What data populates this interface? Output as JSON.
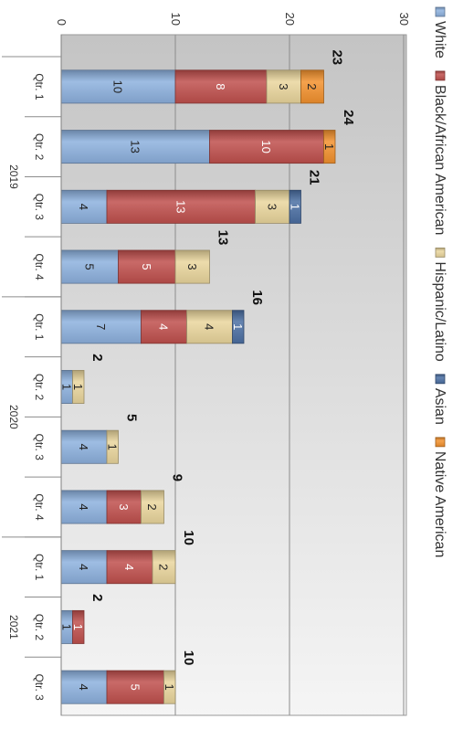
{
  "chart_data": {
    "type": "bar",
    "stacked": true,
    "orientation": "rotated-90-clockwise",
    "ylim": [
      0,
      30
    ],
    "y_ticks": [
      "0",
      "10",
      "20",
      "30"
    ],
    "grid": true,
    "legend_position": "top",
    "groups": [
      {
        "label": "2019",
        "categories": [
          "Qtr. 1",
          "Qtr. 2",
          "Qtr. 3",
          "Qtr. 4"
        ]
      },
      {
        "label": "2020",
        "categories": [
          "Qtr. 1",
          "Qtr. 2",
          "Qtr. 3",
          "Qtr. 4"
        ]
      },
      {
        "label": "2021",
        "categories": [
          "Qtr. 1",
          "Qtr. 2",
          "Qtr. 3"
        ]
      }
    ],
    "categories": [
      "Qtr. 1",
      "Qtr. 2",
      "Qtr. 3",
      "Qtr. 4",
      "Qtr. 1",
      "Qtr. 2",
      "Qtr. 3",
      "Qtr. 4",
      "Qtr. 1",
      "Qtr. 2",
      "Qtr. 3"
    ],
    "series": [
      {
        "name": "White",
        "color": "#8db1de",
        "values": [
          10,
          13,
          4,
          5,
          7,
          1,
          4,
          4,
          4,
          1,
          4
        ]
      },
      {
        "name": "Black/African American",
        "color": "#c0504d",
        "values": [
          8,
          10,
          13,
          5,
          4,
          0,
          0,
          3,
          4,
          1,
          5
        ]
      },
      {
        "name": "Hispanic/Latino",
        "color": "#ead69d",
        "values": [
          3,
          0,
          3,
          3,
          4,
          1,
          1,
          2,
          2,
          0,
          1
        ]
      },
      {
        "name": "Asian",
        "color": "#4b6fa3",
        "values": [
          0,
          0,
          1,
          0,
          1,
          0,
          0,
          0,
          0,
          0,
          0
        ]
      },
      {
        "name": "Native American",
        "color": "#f3922e",
        "values": [
          2,
          1,
          0,
          0,
          0,
          0,
          0,
          0,
          0,
          0,
          0
        ]
      }
    ],
    "totals": [
      "23",
      "24",
      "21",
      "13",
      "16",
      "2",
      "5",
      "9",
      "10",
      "2",
      "10"
    ]
  }
}
